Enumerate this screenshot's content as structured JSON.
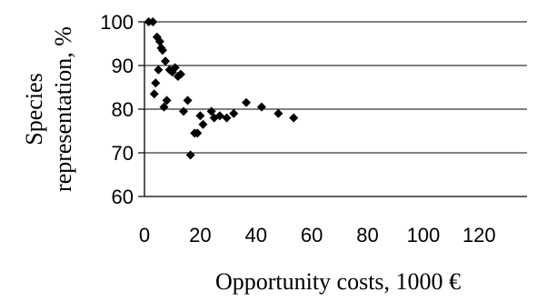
{
  "chart_data": {
    "type": "scatter",
    "xlabel": "Opportunity costs, 1000 €",
    "ylabel_lines": [
      "Species",
      "representation, %"
    ],
    "xlim": [
      0,
      130
    ],
    "ylim": [
      60,
      100
    ],
    "x_ticks": [
      0,
      20,
      40,
      60,
      80,
      100,
      120
    ],
    "y_ticks": [
      60,
      70,
      80,
      90,
      100
    ],
    "grid": "horizontal",
    "marker": "diamond",
    "marker_color": "#000000",
    "series": [
      {
        "points": [
          [
            1.5,
            100
          ],
          [
            3,
            100
          ],
          [
            3.5,
            83.5
          ],
          [
            4,
            86
          ],
          [
            4.5,
            96.5
          ],
          [
            5,
            89
          ],
          [
            5.5,
            95.5
          ],
          [
            6,
            94
          ],
          [
            6.5,
            93.5
          ],
          [
            7,
            80.5
          ],
          [
            7.5,
            91
          ],
          [
            8,
            82
          ],
          [
            9,
            89
          ],
          [
            10,
            88.5
          ],
          [
            11,
            89.5
          ],
          [
            12,
            87.5
          ],
          [
            13,
            88
          ],
          [
            14,
            79.5
          ],
          [
            15.5,
            82
          ],
          [
            16.5,
            69.5
          ],
          [
            18,
            74.5
          ],
          [
            19,
            74.5
          ],
          [
            20,
            78.5
          ],
          [
            21,
            76.5
          ],
          [
            24,
            79.5
          ],
          [
            25,
            78
          ],
          [
            27,
            78.5
          ],
          [
            29.5,
            78
          ],
          [
            32,
            79
          ],
          [
            36.5,
            81.5
          ],
          [
            42,
            80.5
          ],
          [
            48,
            79
          ],
          [
            53.5,
            78
          ]
        ]
      }
    ]
  }
}
